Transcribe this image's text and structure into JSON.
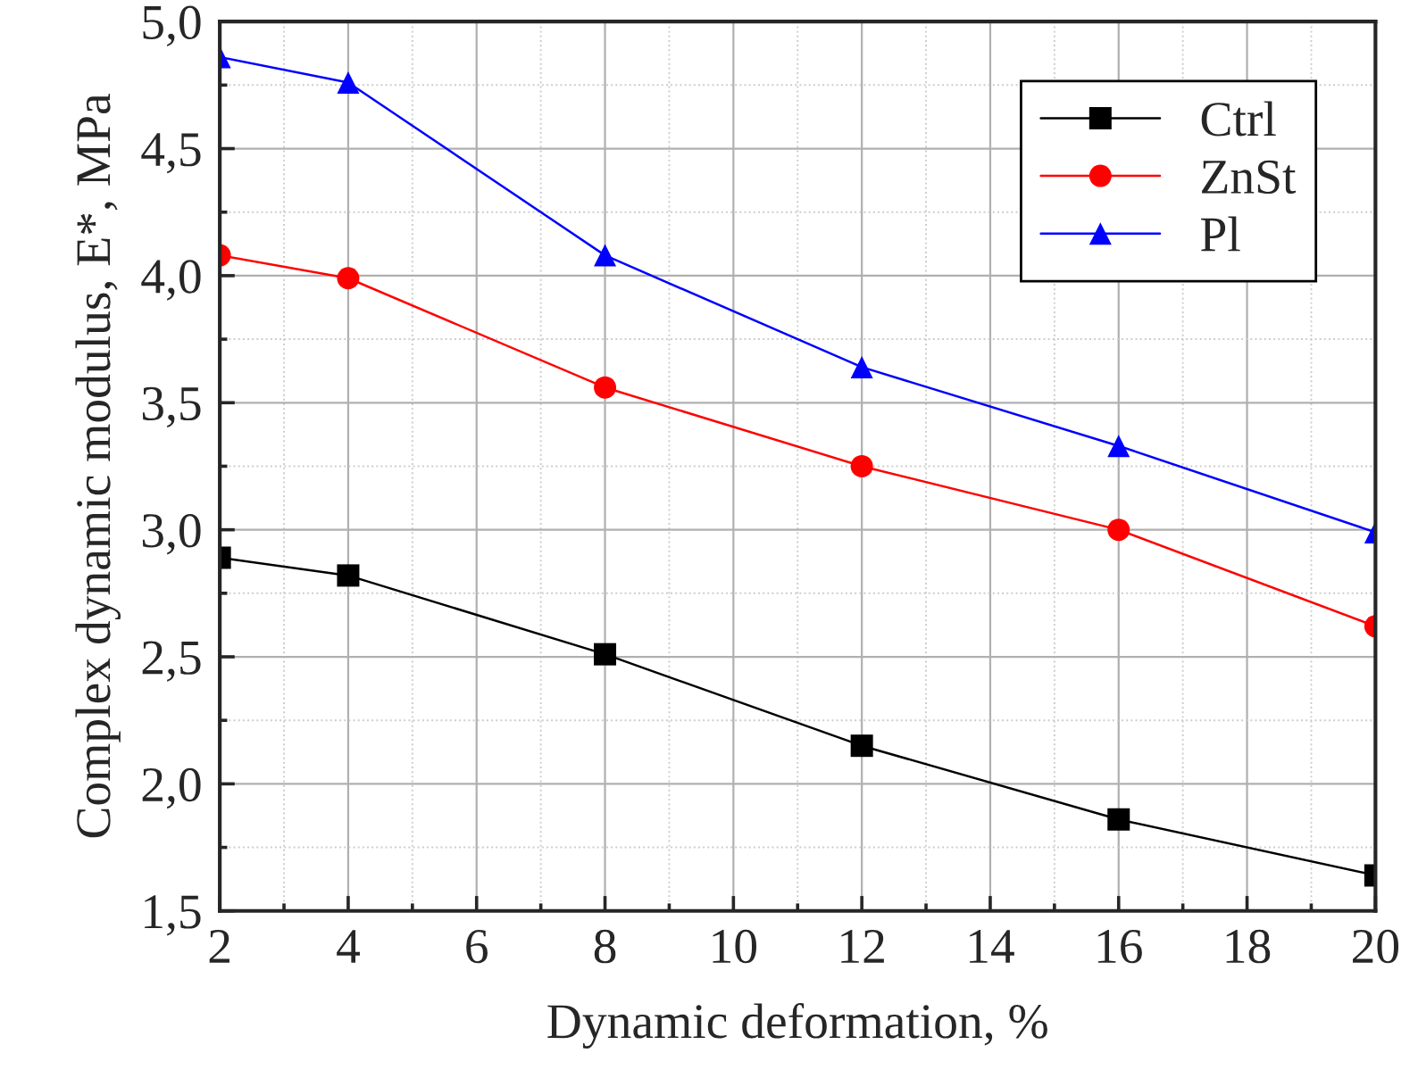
{
  "chart_data": {
    "type": "line",
    "xlabel": "Dynamic deformation, %",
    "ylabel": "Complex dynamic modulus, E*, MPa",
    "x": [
      2,
      4,
      8,
      12,
      16,
      20
    ],
    "series": [
      {
        "name": "Ctrl",
        "color": "#000000",
        "marker": "square",
        "values": [
          2.89,
          2.82,
          2.51,
          2.15,
          1.86,
          1.64
        ]
      },
      {
        "name": "ZnSt",
        "color": "#ff0000",
        "marker": "circle",
        "values": [
          4.08,
          3.99,
          3.56,
          3.25,
          3.0,
          2.62
        ]
      },
      {
        "name": "Pl",
        "color": "#0000ff",
        "marker": "triangle",
        "values": [
          4.86,
          4.76,
          4.08,
          3.64,
          3.33,
          2.99
        ]
      }
    ],
    "xlim": [
      2,
      20
    ],
    "xticks": [
      2,
      4,
      6,
      8,
      10,
      12,
      14,
      16,
      18,
      20
    ],
    "ylim": [
      1.5,
      5.0
    ],
    "yticks": [
      {
        "value": 1.5,
        "label": "1,5"
      },
      {
        "value": 2.0,
        "label": "2,0"
      },
      {
        "value": 2.5,
        "label": "2,5"
      },
      {
        "value": 3.0,
        "label": "3,0"
      },
      {
        "value": 3.5,
        "label": "3,5"
      },
      {
        "value": 4.0,
        "label": "4,0"
      },
      {
        "value": 4.5,
        "label": "4,5"
      },
      {
        "value": 5.0,
        "label": "5,0"
      }
    ],
    "grid": true,
    "legend": "top right",
    "line_style": "solid"
  }
}
